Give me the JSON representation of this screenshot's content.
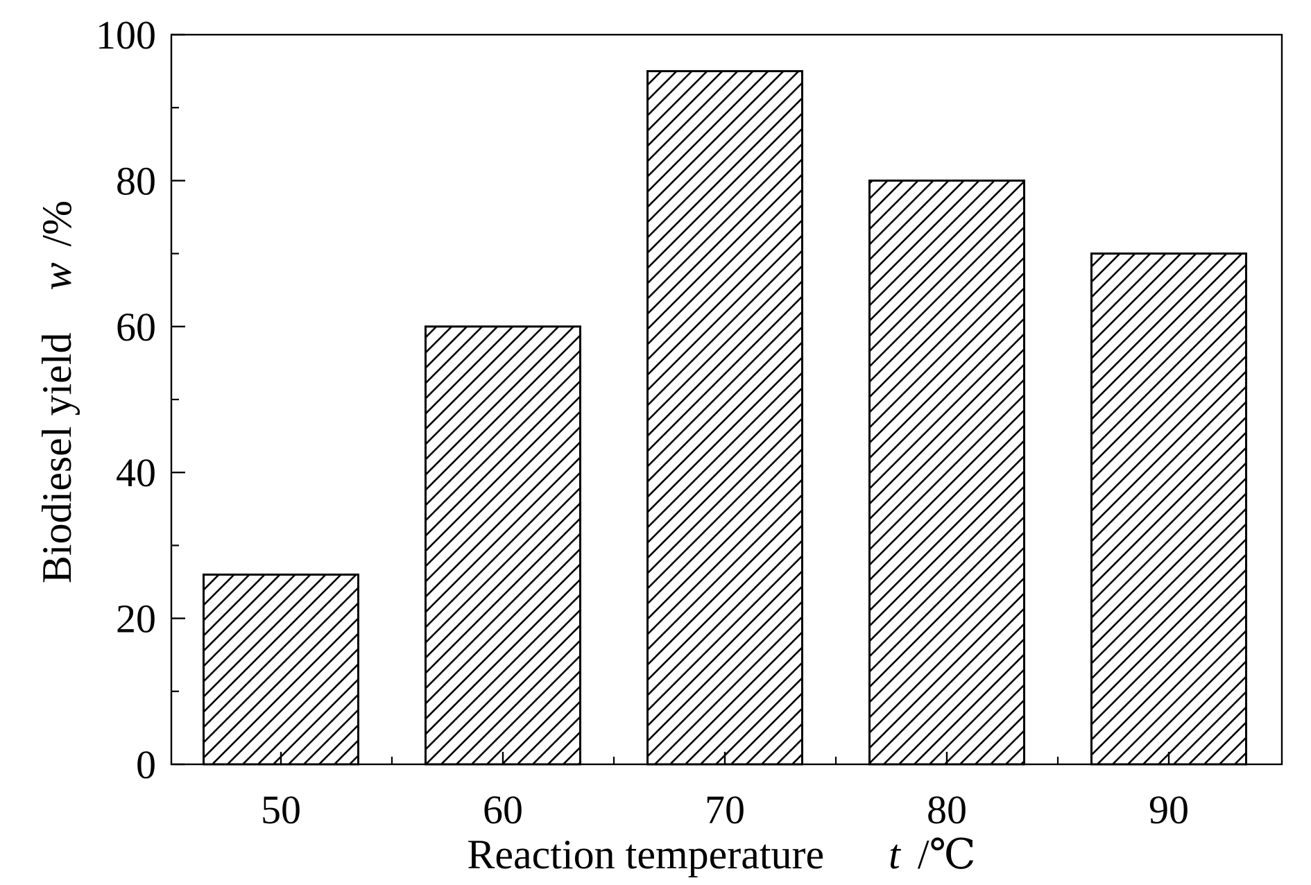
{
  "chart_data": {
    "type": "bar",
    "categories": [
      "50",
      "60",
      "70",
      "80",
      "90"
    ],
    "values": [
      26,
      60,
      95,
      80,
      70
    ],
    "title": "",
    "xlabel": {
      "text": "Reaction temperature",
      "symbol": "t",
      "unit": "/℃"
    },
    "ylabel": {
      "text": "Biodiesel yield",
      "symbol": "w",
      "unit": "/%"
    },
    "ylim": [
      0,
      100
    ],
    "yticks": [
      0,
      20,
      40,
      60,
      80,
      100
    ],
    "y_minor_ticks": [
      10,
      30,
      50,
      70,
      90
    ],
    "grid": false,
    "legend": "none",
    "bar_fill": "diagonal-hatch",
    "colors": {
      "stroke": "#000000",
      "background": "#ffffff"
    }
  }
}
